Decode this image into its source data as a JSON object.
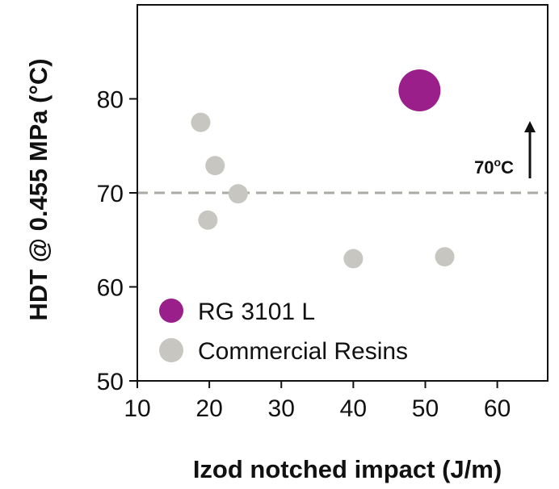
{
  "chart_data": {
    "type": "scatter",
    "xlabel": "Izod notched impact (J/m)",
    "ylabel": "HDT @ 0.455 MPa (°C)",
    "xlim": [
      10,
      67
    ],
    "ylim": [
      50,
      90
    ],
    "xticks": [
      "10",
      "20",
      "30",
      "40",
      "50",
      "60"
    ],
    "yticks": [
      "50",
      "60",
      "70",
      "80"
    ],
    "grid": false,
    "legend_position": "bottom-left",
    "series": [
      {
        "name": "RG 3101 L",
        "color": "#9b1f8a",
        "points": [
          {
            "x": 49.2,
            "y": 80.9
          }
        ]
      },
      {
        "name": "Commercial Resins",
        "color": "#c8c6c0",
        "points": [
          {
            "x": 18.8,
            "y": 77.5
          },
          {
            "x": 20.8,
            "y": 72.9
          },
          {
            "x": 24.0,
            "y": 69.9
          },
          {
            "x": 19.8,
            "y": 67.1
          },
          {
            "x": 40.0,
            "y": 63.0
          },
          {
            "x": 52.7,
            "y": 63.2
          }
        ]
      }
    ],
    "reference_line": {
      "y": 70,
      "label_main": "70",
      "label_sup": "o",
      "label_unit": "C",
      "color": "#aaa9a4"
    },
    "annotation_arrow": {
      "direction": "up"
    }
  }
}
